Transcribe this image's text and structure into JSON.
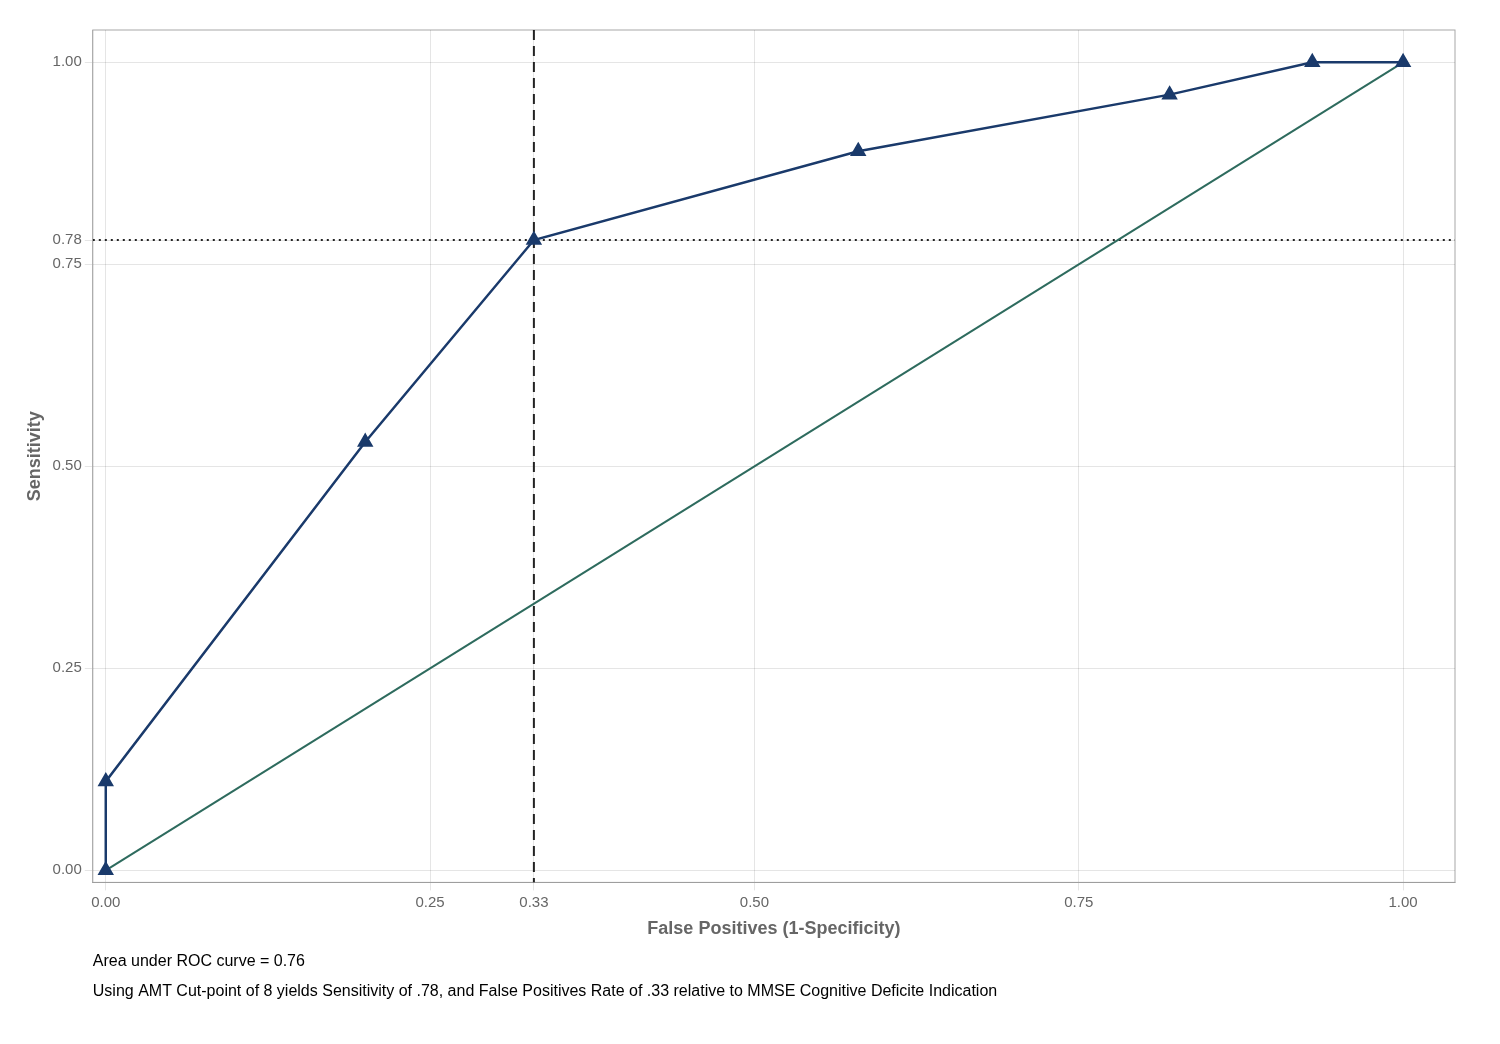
{
  "chart_data": {
    "type": "line",
    "xlabel": "False Positives (1-Specificity)",
    "ylabel": "Sensitivity",
    "series": [
      {
        "x": [
          0.0,
          1.0
        ],
        "values": [
          0.0,
          1.0
        ],
        "color": "#2e6b5e",
        "marker": "none",
        "line_style": "solid"
      },
      {
        "x": [
          0.0,
          0.0,
          0.2,
          0.33,
          0.58,
          0.82,
          0.93,
          1.0
        ],
        "values": [
          0.0,
          0.11,
          0.53,
          0.78,
          0.89,
          0.96,
          1.0,
          1.0
        ],
        "color": "#1a3a6b",
        "marker": "triangle",
        "line_style": "solid"
      }
    ],
    "vlines": [
      {
        "value": 0.33,
        "color": "#222222",
        "line_style": "dashed"
      }
    ],
    "hlines": [
      {
        "value": 0.78,
        "color": "#222222",
        "line_style": "dotted"
      }
    ],
    "xlim": [
      -0.01,
      1.04
    ],
    "ylim": [
      -0.015,
      1.04
    ],
    "xticks": [
      {
        "value": 0,
        "label": "0.00"
      },
      0.25,
      0.33,
      {
        "value": 0.5,
        "label": "0.50"
      },
      0.75,
      {
        "value": 1,
        "label": "1.00"
      }
    ],
    "yticks": [
      {
        "value": 0,
        "label": "0.00"
      },
      0.25,
      {
        "value": 0.5,
        "label": "0.50"
      },
      0.75,
      0.78,
      {
        "value": 1,
        "label": "1.00"
      }
    ],
    "grid": true,
    "annotations": [
      "Area under ROC curve = 0.76",
      "Using AMT Cut-point of 8 yields Sensitivity of .78, and False Positives Rate of .33 relative to MMSE Cognitive Deficite Indication"
    ]
  }
}
